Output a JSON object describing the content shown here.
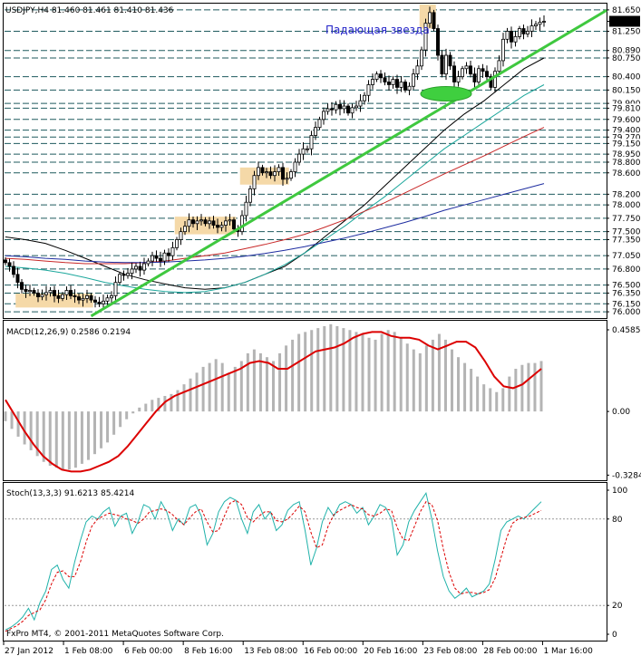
{
  "chart_data": [
    {
      "type": "candlestick",
      "title": "USDJPY,H4  81.460 81.461 81.410 81.436",
      "annotation": "Падающая звезда",
      "ylim": [
        75.9,
        81.75
      ],
      "price_labels": [
        "81.650",
        "81.436",
        "81.250",
        "80.890",
        "80.750",
        "80.400",
        "80.150",
        "79.900",
        "79.810",
        "79.600",
        "79.400",
        "79.270",
        "79.150",
        "78.950",
        "78.800",
        "78.600",
        "78.200",
        "78.000",
        "77.750",
        "77.500",
        "77.350",
        "77.050",
        "76.800",
        "76.500",
        "76.350",
        "76.150",
        "76.000"
      ],
      "current_price": 81.436,
      "horizontal_levels": [
        81.65,
        81.25,
        80.89,
        80.75,
        80.4,
        80.15,
        79.9,
        79.81,
        79.6,
        79.4,
        79.27,
        79.15,
        78.95,
        78.8,
        78.6,
        78.2,
        78.0,
        77.75,
        77.5,
        77.35,
        77.05,
        76.8,
        76.5,
        76.35,
        76.15,
        76.0
      ],
      "x_tick_labels": [
        "27 Jan 2012",
        "1 Feb 08:00",
        "6 Feb 00:00",
        "8 Feb 16:00",
        "13 Feb 08:00",
        "16 Feb 00:00",
        "20 Feb 16:00",
        "23 Feb 08:00",
        "28 Feb 00:00",
        "1 Mar 16:00"
      ],
      "close": [
        76.92,
        76.85,
        76.7,
        76.55,
        76.42,
        76.38,
        76.4,
        76.35,
        76.28,
        76.32,
        76.36,
        76.4,
        76.3,
        76.25,
        76.32,
        76.4,
        76.3,
        76.28,
        76.22,
        76.25,
        76.3,
        76.22,
        76.18,
        76.15,
        76.2,
        76.26,
        76.3,
        76.55,
        76.7,
        76.68,
        76.72,
        76.8,
        76.85,
        76.78,
        76.9,
        76.95,
        77.05,
        77.0,
        76.95,
        77.1,
        77.05,
        77.2,
        77.35,
        77.5,
        77.6,
        77.72,
        77.65,
        77.7,
        77.72,
        77.65,
        77.7,
        77.62,
        77.58,
        77.62,
        77.7,
        77.72,
        77.55,
        77.5,
        77.8,
        78.05,
        78.3,
        78.55,
        78.7,
        78.6,
        78.62,
        78.55,
        78.62,
        78.7,
        78.48,
        78.5,
        78.62,
        78.8,
        78.95,
        79.05,
        79.05,
        79.3,
        79.45,
        79.6,
        79.75,
        79.8,
        79.78,
        79.88,
        79.8,
        79.85,
        79.72,
        79.82,
        79.85,
        79.95,
        80.05,
        80.25,
        80.35,
        80.45,
        80.38,
        80.3,
        80.25,
        80.35,
        80.2,
        80.3,
        80.15,
        80.22,
        80.45,
        80.6,
        80.9,
        81.4,
        81.6,
        81.3,
        80.8,
        80.45,
        80.8,
        80.6,
        80.3,
        80.4,
        80.55,
        80.6,
        80.45,
        80.3,
        80.55,
        80.5,
        80.4,
        80.2,
        80.5,
        80.7,
        81.1,
        81.25,
        81.05,
        81.15,
        81.3,
        81.2,
        81.25,
        81.35,
        81.38,
        81.42,
        81.436
      ],
      "annotation_boxes": [
        {
          "c0": 3,
          "c1": 21,
          "p0": 76.08,
          "p1": 76.34
        },
        {
          "c0": 42,
          "c1": 56,
          "p0": 77.45,
          "p1": 77.78
        },
        {
          "c0": 58,
          "c1": 69,
          "p0": 78.38,
          "p1": 78.7
        },
        {
          "c0": 102,
          "c1": 105,
          "p0": 81.3,
          "p1": 81.75
        }
      ],
      "trendline": {
        "from": [
          21,
          75.92
        ],
        "to": [
          142,
          81.4
        ]
      },
      "ellipse": {
        "candle": 108,
        "price": 80.08
      },
      "moving_averages": [
        {
          "color": "#000000",
          "values": [
            77.4,
            77.35,
            77.28,
            77.15,
            77.0,
            76.85,
            76.7,
            76.6,
            76.52,
            76.45,
            76.42,
            76.45,
            76.55,
            76.7,
            76.85,
            77.1,
            77.4,
            77.7,
            78.0,
            78.35,
            78.7,
            79.05,
            79.4,
            79.7,
            79.95,
            80.25,
            80.55,
            80.75
          ]
        },
        {
          "color": "#1ca79c",
          "values": [
            76.85,
            76.82,
            76.78,
            76.72,
            76.64,
            76.55,
            76.48,
            76.42,
            76.38,
            76.36,
            76.38,
            76.45,
            76.55,
            76.7,
            76.88,
            77.1,
            77.35,
            77.6,
            77.88,
            78.15,
            78.45,
            78.75,
            79.05,
            79.3,
            79.55,
            79.8,
            80.05,
            80.25
          ]
        },
        {
          "color": "#c82828",
          "values": [
            77.0,
            76.98,
            76.95,
            76.92,
            76.9,
            76.9,
            76.9,
            76.92,
            76.95,
            77.0,
            77.05,
            77.1,
            77.18,
            77.26,
            77.35,
            77.45,
            77.58,
            77.72,
            77.88,
            78.04,
            78.22,
            78.4,
            78.58,
            78.75,
            78.92,
            79.1,
            79.28,
            79.45
          ]
        },
        {
          "color": "#1e2da0",
          "values": [
            77.05,
            77.03,
            77.0,
            76.98,
            76.95,
            76.93,
            76.92,
            76.92,
            76.93,
            76.95,
            76.97,
            77.0,
            77.04,
            77.09,
            77.15,
            77.22,
            77.3,
            77.38,
            77.47,
            77.57,
            77.67,
            77.78,
            77.9,
            78.0,
            78.1,
            78.2,
            78.3,
            78.4
          ]
        }
      ]
    },
    {
      "type": "bar",
      "title": "MACD(12,26,9) 0.2586 0.2194",
      "price_labels": [
        "0.4585",
        "0.00",
        "-0.3284"
      ],
      "ylim": [
        -0.35,
        0.4585
      ],
      "histogram": [
        -0.05,
        -0.09,
        -0.13,
        -0.17,
        -0.2,
        -0.23,
        -0.26,
        -0.28,
        -0.29,
        -0.3,
        -0.3,
        -0.29,
        -0.27,
        -0.25,
        -0.22,
        -0.19,
        -0.16,
        -0.12,
        -0.08,
        -0.04,
        -0.01,
        0.02,
        0.04,
        0.06,
        0.07,
        0.08,
        0.09,
        0.11,
        0.14,
        0.17,
        0.2,
        0.23,
        0.25,
        0.27,
        0.25,
        0.2,
        0.23,
        0.26,
        0.3,
        0.32,
        0.3,
        0.28,
        0.26,
        0.3,
        0.34,
        0.37,
        0.4,
        0.41,
        0.42,
        0.43,
        0.44,
        0.45,
        0.44,
        0.43,
        0.42,
        0.41,
        0.4,
        0.38,
        0.37,
        0.4,
        0.42,
        0.41,
        0.38,
        0.35,
        0.32,
        0.3,
        0.34,
        0.37,
        0.4,
        0.37,
        0.32,
        0.28,
        0.25,
        0.22,
        0.18,
        0.14,
        0.12,
        0.1,
        0.12,
        0.18,
        0.22,
        0.24,
        0.25,
        0.25,
        0.26
      ],
      "signal": [
        0.06,
        -0.02,
        -0.1,
        -0.17,
        -0.23,
        -0.27,
        -0.3,
        -0.31,
        -0.31,
        -0.3,
        -0.28,
        -0.26,
        -0.23,
        -0.18,
        -0.12,
        -0.06,
        0.0,
        0.05,
        0.08,
        0.1,
        0.12,
        0.14,
        0.16,
        0.18,
        0.2,
        0.22,
        0.25,
        0.26,
        0.25,
        0.22,
        0.22,
        0.25,
        0.28,
        0.31,
        0.32,
        0.33,
        0.35,
        0.38,
        0.4,
        0.41,
        0.41,
        0.39,
        0.38,
        0.38,
        0.37,
        0.34,
        0.32,
        0.34,
        0.36,
        0.36,
        0.33,
        0.26,
        0.18,
        0.13,
        0.12,
        0.14,
        0.18,
        0.22
      ]
    },
    {
      "type": "line",
      "title": "Stoch(13,3,3) 91.6213 85.4214",
      "price_labels": [
        "100",
        "80",
        "20",
        "0"
      ],
      "ylim": [
        0,
        100
      ],
      "levels": [
        20,
        80
      ],
      "main": [
        3,
        5,
        8,
        12,
        18,
        10,
        22,
        30,
        45,
        48,
        38,
        32,
        50,
        65,
        78,
        82,
        80,
        85,
        88,
        75,
        82,
        84,
        70,
        78,
        90,
        88,
        80,
        92,
        85,
        72,
        80,
        76,
        88,
        90,
        82,
        62,
        70,
        85,
        92,
        95,
        93,
        80,
        70,
        85,
        90,
        80,
        85,
        72,
        76,
        86,
        90,
        92,
        72,
        48,
        60,
        78,
        88,
        82,
        90,
        92,
        90,
        84,
        88,
        76,
        82,
        90,
        88,
        80,
        55,
        62,
        78,
        86,
        92,
        98,
        80,
        58,
        40,
        30,
        25,
        28,
        32,
        26,
        28,
        30,
        35,
        52,
        72,
        78,
        80,
        82,
        80,
        84,
        88,
        92
      ],
      "signal": [
        2,
        4,
        6,
        9,
        13,
        15,
        17,
        24,
        35,
        43,
        44,
        40,
        40,
        50,
        64,
        75,
        80,
        82,
        84,
        83,
        82,
        80,
        79,
        77,
        80,
        85,
        86,
        87,
        86,
        83,
        79,
        76,
        81,
        85,
        87,
        78,
        71,
        72,
        82,
        91,
        93,
        90,
        81,
        78,
        82,
        85,
        85,
        79,
        78,
        80,
        84,
        89,
        85,
        71,
        60,
        62,
        75,
        83,
        86,
        88,
        90,
        88,
        87,
        83,
        82,
        84,
        87,
        86,
        74,
        66,
        65,
        75,
        85,
        92,
        90,
        79,
        59,
        43,
        32,
        28,
        29,
        29,
        28,
        29,
        31,
        39,
        53,
        67,
        77,
        80,
        81,
        82,
        84,
        86
      ]
    },
    {
      "type": "footer",
      "copyright": "FxPro MT4, © 2001-2011 MetaQuotes Software Corp."
    }
  ]
}
